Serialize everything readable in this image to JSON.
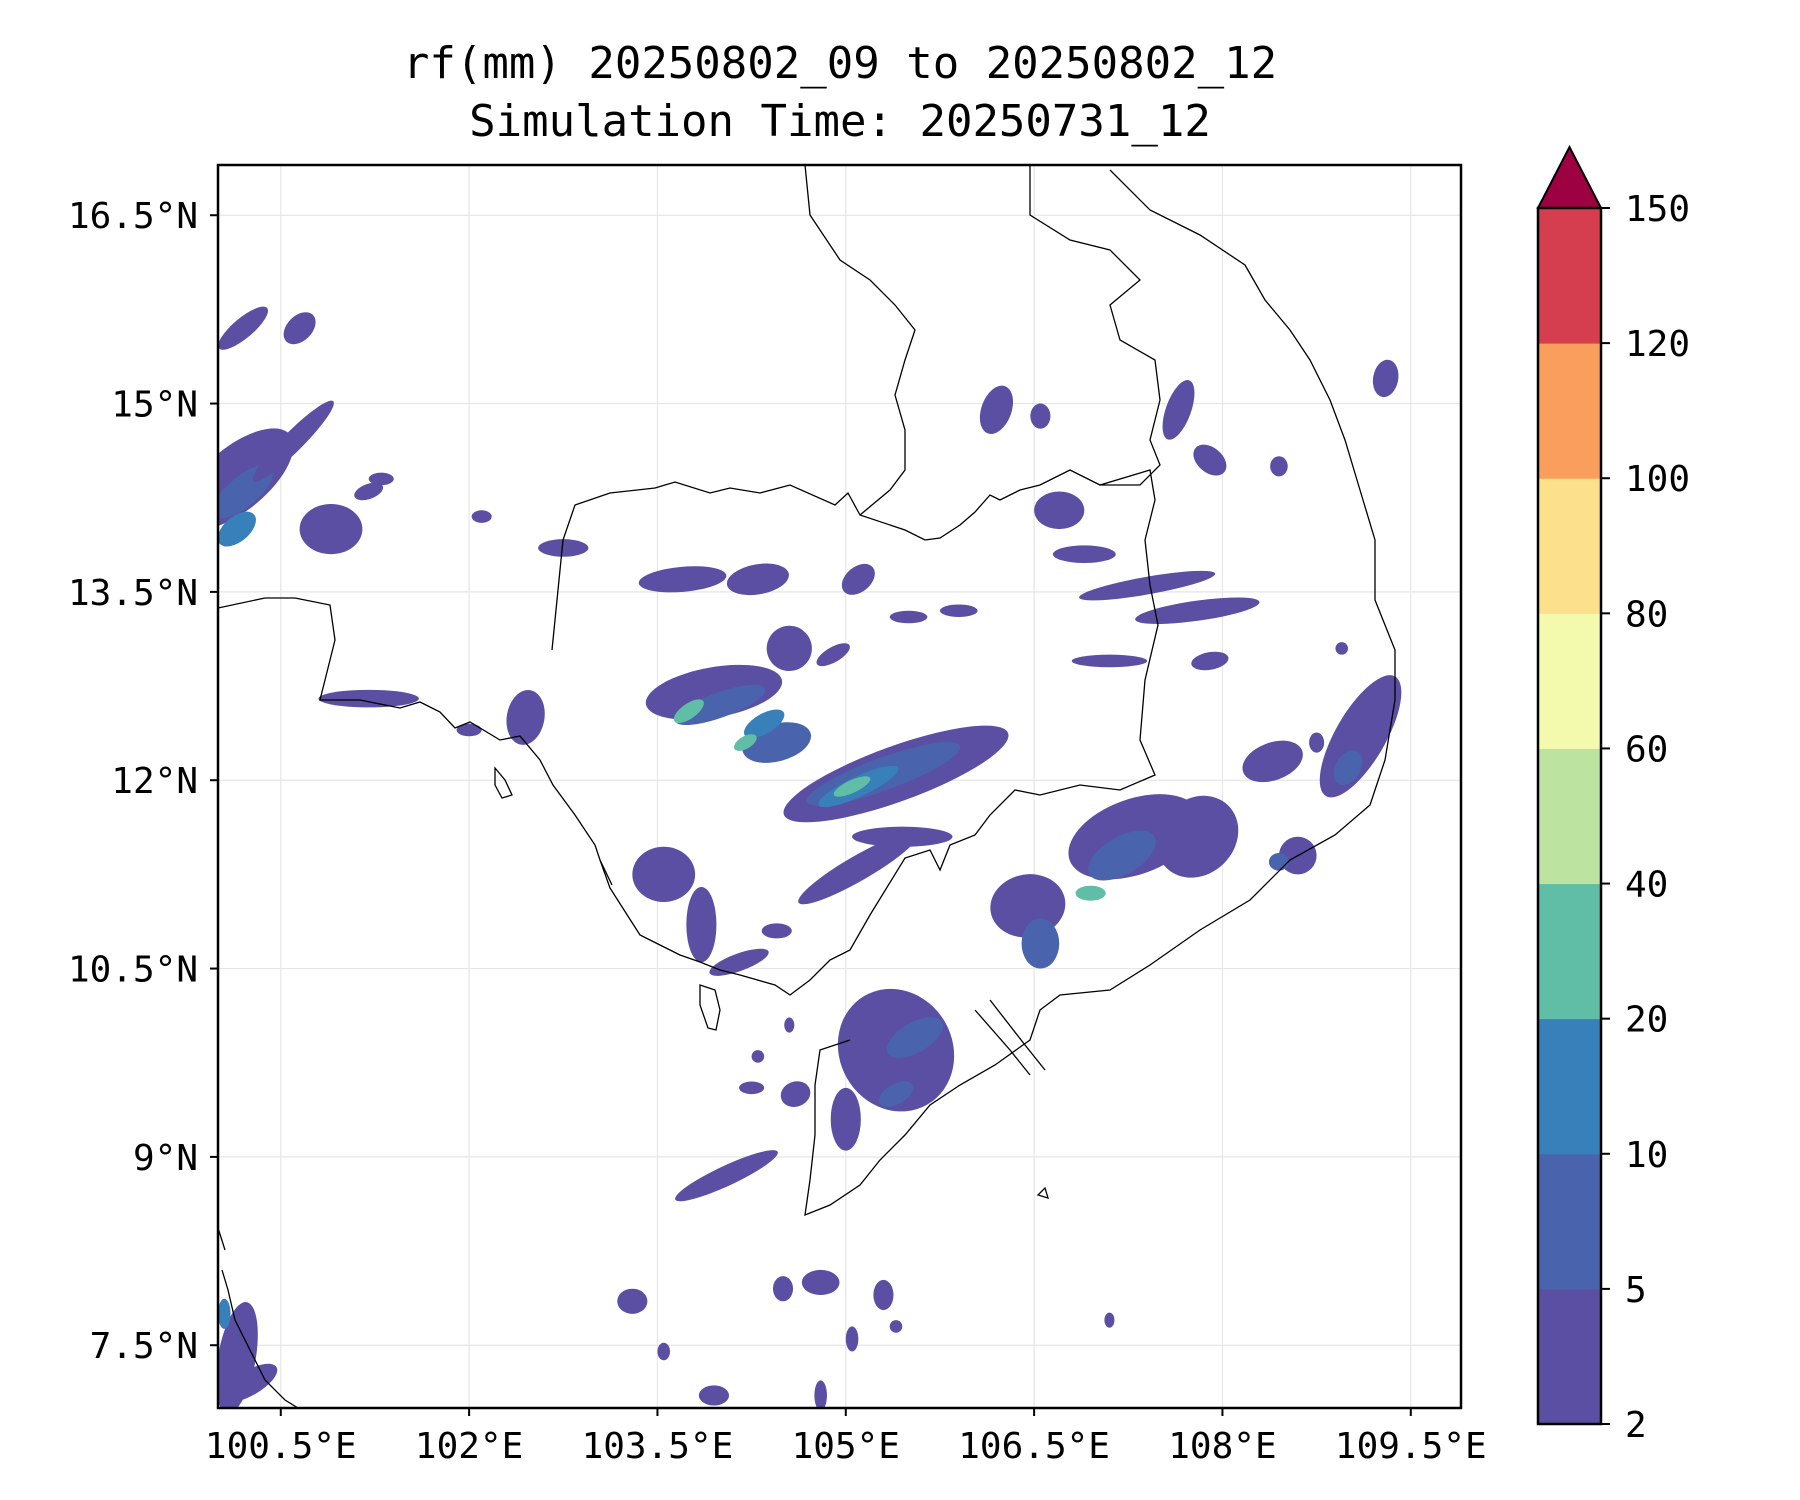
{
  "title": {
    "line1": "rf(mm) 20250802_09 to 20250802_12",
    "line2": "Simulation Time: 20250731_12"
  },
  "map": {
    "lon_range": [
      100.0,
      109.9
    ],
    "lat_range": [
      7.0,
      16.9
    ],
    "x_ticks": [
      {
        "value": 100.5,
        "label": "100.5°E"
      },
      {
        "value": 102.0,
        "label": "102°E"
      },
      {
        "value": 103.5,
        "label": "103.5°E"
      },
      {
        "value": 105.0,
        "label": "105°E"
      },
      {
        "value": 106.5,
        "label": "106.5°E"
      },
      {
        "value": 108.0,
        "label": "108°E"
      },
      {
        "value": 109.5,
        "label": "109.5°E"
      }
    ],
    "y_ticks": [
      {
        "value": 16.5,
        "label": "16.5°N"
      },
      {
        "value": 15.0,
        "label": "15°N"
      },
      {
        "value": 13.5,
        "label": "13.5°N"
      },
      {
        "value": 12.0,
        "label": "12°N"
      },
      {
        "value": 10.5,
        "label": "10.5°N"
      },
      {
        "value": 9.0,
        "label": "9°N"
      },
      {
        "value": 7.5,
        "label": "7.5°N"
      }
    ],
    "grid": true,
    "coastline_color": "#000000"
  },
  "colorbar": {
    "levels": [
      2,
      5,
      10,
      20,
      40,
      60,
      80,
      100,
      120,
      150
    ],
    "labels": [
      "2",
      "5",
      "10",
      "20",
      "40",
      "60",
      "80",
      "100",
      "120",
      "150"
    ],
    "colors": [
      "#5a4fa2",
      "#4a63ad",
      "#3880b9",
      "#61bea6",
      "#bde3a0",
      "#f3faad",
      "#fde08b",
      "#f99e5c",
      "#d53e4f"
    ],
    "extend_color": "#9e0142",
    "extend": "max"
  },
  "rain_cells": [
    {
      "lon": 100.15,
      "lat": 14.4,
      "dlon": 0.55,
      "dlat": 0.25,
      "angle": -40,
      "level": 0
    },
    {
      "lon": 100.2,
      "lat": 14.3,
      "dlon": 0.3,
      "dlat": 0.12,
      "angle": -40,
      "level": 1
    },
    {
      "lon": 100.15,
      "lat": 14.0,
      "dlon": 0.18,
      "dlat": 0.1,
      "angle": -40,
      "level": 2
    },
    {
      "lon": 100.6,
      "lat": 14.7,
      "dlon": 0.45,
      "dlat": 0.08,
      "angle": -45,
      "level": 0
    },
    {
      "lon": 100.9,
      "lat": 14.0,
      "dlon": 0.25,
      "dlat": 0.2,
      "angle": 0,
      "level": 0
    },
    {
      "lon": 100.2,
      "lat": 15.6,
      "dlon": 0.25,
      "dlat": 0.08,
      "angle": -40,
      "level": 0
    },
    {
      "lon": 100.65,
      "lat": 15.6,
      "dlon": 0.15,
      "dlat": 0.1,
      "angle": -45,
      "level": 0
    },
    {
      "lon": 101.2,
      "lat": 14.3,
      "dlon": 0.12,
      "dlat": 0.06,
      "angle": -20,
      "level": 0
    },
    {
      "lon": 101.3,
      "lat": 14.4,
      "dlon": 0.1,
      "dlat": 0.05,
      "angle": 0,
      "level": 0
    },
    {
      "lon": 102.1,
      "lat": 14.1,
      "dlon": 0.08,
      "dlat": 0.05,
      "angle": 0,
      "level": 0
    },
    {
      "lon": 102.75,
      "lat": 13.85,
      "dlon": 0.2,
      "dlat": 0.07,
      "angle": 0,
      "level": 0
    },
    {
      "lon": 101.2,
      "lat": 12.65,
      "dlon": 0.4,
      "dlat": 0.07,
      "angle": 0,
      "level": 0
    },
    {
      "lon": 102.45,
      "lat": 12.5,
      "dlon": 0.15,
      "dlat": 0.22,
      "angle": 10,
      "level": 0
    },
    {
      "lon": 102.0,
      "lat": 12.4,
      "dlon": 0.1,
      "dlat": 0.05,
      "angle": 0,
      "level": 0
    },
    {
      "lon": 103.95,
      "lat": 12.7,
      "dlon": 0.55,
      "dlat": 0.2,
      "angle": -10,
      "level": 0
    },
    {
      "lon": 104.0,
      "lat": 12.6,
      "dlon": 0.38,
      "dlat": 0.1,
      "angle": -20,
      "level": 1
    },
    {
      "lon": 103.75,
      "lat": 12.55,
      "dlon": 0.14,
      "dlat": 0.06,
      "angle": -35,
      "level": 3
    },
    {
      "lon": 104.45,
      "lat": 12.3,
      "dlon": 0.28,
      "dlat": 0.15,
      "angle": -15,
      "level": 1
    },
    {
      "lon": 104.35,
      "lat": 12.45,
      "dlon": 0.18,
      "dlat": 0.08,
      "angle": -30,
      "level": 2
    },
    {
      "lon": 104.2,
      "lat": 12.3,
      "dlon": 0.1,
      "dlat": 0.05,
      "angle": -30,
      "level": 3
    },
    {
      "lon": 103.7,
      "lat": 13.6,
      "dlon": 0.35,
      "dlat": 0.1,
      "angle": -5,
      "level": 0
    },
    {
      "lon": 104.3,
      "lat": 13.6,
      "dlon": 0.25,
      "dlat": 0.12,
      "angle": -10,
      "level": 0
    },
    {
      "lon": 104.55,
      "lat": 13.05,
      "dlon": 0.18,
      "dlat": 0.18,
      "angle": -30,
      "level": 0
    },
    {
      "lon": 105.1,
      "lat": 13.6,
      "dlon": 0.15,
      "dlat": 0.1,
      "angle": -40,
      "level": 0
    },
    {
      "lon": 104.9,
      "lat": 13.0,
      "dlon": 0.15,
      "dlat": 0.06,
      "angle": -30,
      "level": 0
    },
    {
      "lon": 105.5,
      "lat": 13.3,
      "dlon": 0.15,
      "dlat": 0.05,
      "angle": 0,
      "level": 0
    },
    {
      "lon": 105.9,
      "lat": 13.35,
      "dlon": 0.15,
      "dlat": 0.05,
      "angle": 0,
      "level": 0
    },
    {
      "lon": 105.4,
      "lat": 12.05,
      "dlon": 0.95,
      "dlat": 0.22,
      "angle": -20,
      "level": 0
    },
    {
      "lon": 105.3,
      "lat": 12.05,
      "dlon": 0.65,
      "dlat": 0.13,
      "angle": -20,
      "level": 1
    },
    {
      "lon": 105.1,
      "lat": 11.95,
      "dlon": 0.35,
      "dlat": 0.08,
      "angle": -25,
      "level": 2
    },
    {
      "lon": 105.05,
      "lat": 11.95,
      "dlon": 0.16,
      "dlat": 0.05,
      "angle": -25,
      "level": 3
    },
    {
      "lon": 105.1,
      "lat": 11.3,
      "dlon": 0.55,
      "dlat": 0.1,
      "angle": -30,
      "level": 0
    },
    {
      "lon": 105.45,
      "lat": 11.55,
      "dlon": 0.4,
      "dlat": 0.08,
      "angle": 0,
      "level": 0
    },
    {
      "lon": 103.55,
      "lat": 11.25,
      "dlon": 0.25,
      "dlat": 0.22,
      "angle": 0,
      "level": 0
    },
    {
      "lon": 103.85,
      "lat": 10.85,
      "dlon": 0.12,
      "dlat": 0.3,
      "angle": 0,
      "level": 0
    },
    {
      "lon": 104.15,
      "lat": 10.55,
      "dlon": 0.25,
      "dlat": 0.07,
      "angle": -20,
      "level": 0
    },
    {
      "lon": 104.45,
      "lat": 10.8,
      "dlon": 0.12,
      "dlat": 0.06,
      "angle": 0,
      "level": 0
    },
    {
      "lon": 106.7,
      "lat": 14.15,
      "dlon": 0.2,
      "dlat": 0.15,
      "angle": 0,
      "level": 0
    },
    {
      "lon": 106.9,
      "lat": 13.8,
      "dlon": 0.25,
      "dlat": 0.07,
      "angle": 0,
      "level": 0
    },
    {
      "lon": 107.4,
      "lat": 13.55,
      "dlon": 0.55,
      "dlat": 0.07,
      "angle": -10,
      "level": 0
    },
    {
      "lon": 107.8,
      "lat": 13.35,
      "dlon": 0.5,
      "dlat": 0.08,
      "angle": -8,
      "level": 0
    },
    {
      "lon": 107.1,
      "lat": 12.95,
      "dlon": 0.3,
      "dlat": 0.05,
      "angle": 0,
      "level": 0
    },
    {
      "lon": 107.9,
      "lat": 12.95,
      "dlon": 0.15,
      "dlat": 0.07,
      "angle": -10,
      "level": 0
    },
    {
      "lon": 106.2,
      "lat": 14.95,
      "dlon": 0.12,
      "dlat": 0.2,
      "angle": 20,
      "level": 0
    },
    {
      "lon": 107.65,
      "lat": 14.95,
      "dlon": 0.1,
      "dlat": 0.25,
      "angle": 20,
      "level": 0
    },
    {
      "lon": 106.55,
      "lat": 14.9,
      "dlon": 0.08,
      "dlat": 0.1,
      "angle": 0,
      "level": 0
    },
    {
      "lon": 107.9,
      "lat": 14.55,
      "dlon": 0.15,
      "dlat": 0.1,
      "angle": 40,
      "level": 0
    },
    {
      "lon": 108.45,
      "lat": 14.5,
      "dlon": 0.07,
      "dlat": 0.08,
      "angle": 0,
      "level": 0
    },
    {
      "lon": 109.3,
      "lat": 15.2,
      "dlon": 0.1,
      "dlat": 0.15,
      "angle": 10,
      "level": 0
    },
    {
      "lon": 107.3,
      "lat": 11.55,
      "dlon": 0.55,
      "dlat": 0.3,
      "angle": -20,
      "level": 0
    },
    {
      "lon": 107.2,
      "lat": 11.4,
      "dlon": 0.3,
      "dlat": 0.15,
      "angle": -30,
      "level": 1
    },
    {
      "lon": 106.95,
      "lat": 11.1,
      "dlon": 0.12,
      "dlat": 0.06,
      "angle": 0,
      "level": 3
    },
    {
      "lon": 107.8,
      "lat": 11.55,
      "dlon": 0.35,
      "dlat": 0.3,
      "angle": -45,
      "level": 0
    },
    {
      "lon": 106.45,
      "lat": 11.0,
      "dlon": 0.3,
      "dlat": 0.25,
      "angle": -10,
      "level": 0
    },
    {
      "lon": 106.55,
      "lat": 10.7,
      "dlon": 0.15,
      "dlat": 0.2,
      "angle": 0,
      "level": 1
    },
    {
      "lon": 108.4,
      "lat": 12.15,
      "dlon": 0.25,
      "dlat": 0.15,
      "angle": -20,
      "level": 0
    },
    {
      "lon": 109.1,
      "lat": 12.35,
      "dlon": 0.2,
      "dlat": 0.55,
      "angle": 30,
      "level": 0
    },
    {
      "lon": 109.0,
      "lat": 12.1,
      "dlon": 0.1,
      "dlat": 0.15,
      "angle": 30,
      "level": 1
    },
    {
      "lon": 108.6,
      "lat": 11.4,
      "dlon": 0.15,
      "dlat": 0.15,
      "angle": 20,
      "level": 0
    },
    {
      "lon": 108.45,
      "lat": 11.35,
      "dlon": 0.08,
      "dlat": 0.07,
      "angle": 0,
      "level": 1
    },
    {
      "lon": 108.75,
      "lat": 12.3,
      "dlon": 0.06,
      "dlat": 0.08,
      "angle": 0,
      "level": 0
    },
    {
      "lon": 108.95,
      "lat": 13.05,
      "dlon": 0.05,
      "dlat": 0.05,
      "angle": 0,
      "level": 0
    },
    {
      "lon": 105.4,
      "lat": 9.85,
      "dlon": 0.45,
      "dlat": 0.5,
      "angle": -30,
      "level": 0
    },
    {
      "lon": 105.55,
      "lat": 9.95,
      "dlon": 0.25,
      "dlat": 0.12,
      "angle": -30,
      "level": 1
    },
    {
      "lon": 105.4,
      "lat": 9.5,
      "dlon": 0.15,
      "dlat": 0.08,
      "angle": -30,
      "level": 1
    },
    {
      "lon": 105.0,
      "lat": 9.3,
      "dlon": 0.12,
      "dlat": 0.25,
      "angle": 0,
      "level": 0
    },
    {
      "lon": 104.05,
      "lat": 8.85,
      "dlon": 0.45,
      "dlat": 0.08,
      "angle": -25,
      "level": 0
    },
    {
      "lon": 104.25,
      "lat": 9.55,
      "dlon": 0.1,
      "dlat": 0.05,
      "angle": 0,
      "level": 0
    },
    {
      "lon": 104.3,
      "lat": 9.8,
      "dlon": 0.05,
      "dlat": 0.05,
      "angle": 0,
      "level": 0
    },
    {
      "lon": 104.6,
      "lat": 9.5,
      "dlon": 0.12,
      "dlat": 0.1,
      "angle": -20,
      "level": 0
    },
    {
      "lon": 104.55,
      "lat": 10.05,
      "dlon": 0.04,
      "dlat": 0.06,
      "angle": 0,
      "level": 0
    },
    {
      "lon": 103.3,
      "lat": 7.85,
      "dlon": 0.12,
      "dlat": 0.1,
      "angle": 0,
      "level": 0
    },
    {
      "lon": 103.55,
      "lat": 7.45,
      "dlon": 0.05,
      "dlat": 0.07,
      "angle": 0,
      "level": 0
    },
    {
      "lon": 104.8,
      "lat": 8.0,
      "dlon": 0.15,
      "dlat": 0.1,
      "angle": 0,
      "level": 0
    },
    {
      "lon": 104.5,
      "lat": 7.95,
      "dlon": 0.08,
      "dlat": 0.1,
      "angle": 0,
      "level": 0
    },
    {
      "lon": 105.3,
      "lat": 7.9,
      "dlon": 0.08,
      "dlat": 0.12,
      "angle": 0,
      "level": 0
    },
    {
      "lon": 105.05,
      "lat": 7.55,
      "dlon": 0.05,
      "dlat": 0.1,
      "angle": 0,
      "level": 0
    },
    {
      "lon": 105.4,
      "lat": 7.65,
      "dlon": 0.05,
      "dlat": 0.05,
      "angle": 0,
      "level": 0
    },
    {
      "lon": 104.8,
      "lat": 7.1,
      "dlon": 0.05,
      "dlat": 0.12,
      "angle": 0,
      "level": 0
    },
    {
      "lon": 103.95,
      "lat": 7.1,
      "dlon": 0.12,
      "dlat": 0.08,
      "angle": 0,
      "level": 0
    },
    {
      "lon": 100.15,
      "lat": 7.4,
      "dlon": 0.15,
      "dlat": 0.45,
      "angle": 10,
      "level": 0
    },
    {
      "lon": 100.25,
      "lat": 7.2,
      "dlon": 0.25,
      "dlat": 0.1,
      "angle": -30,
      "level": 0
    },
    {
      "lon": 100.05,
      "lat": 7.75,
      "dlon": 0.05,
      "dlat": 0.12,
      "angle": 0,
      "level": 2
    },
    {
      "lon": 107.1,
      "lat": 7.7,
      "dlon": 0.04,
      "dlat": 0.06,
      "angle": 0,
      "level": 0
    }
  ]
}
